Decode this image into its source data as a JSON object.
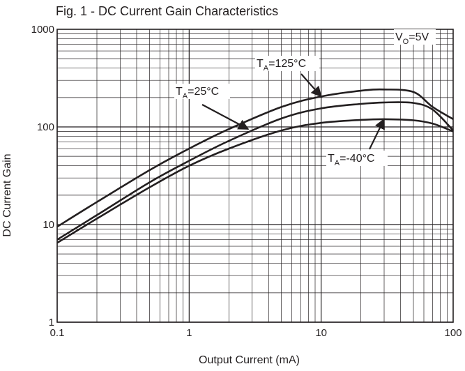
{
  "chart_data": {
    "type": "line",
    "title": "Fig. 1 - DC Current Gain Characteristics",
    "xlabel": "Output Current (mA)",
    "ylabel": "DC Current Gain",
    "x_scale": "log",
    "y_scale": "log",
    "xlim": [
      0.1,
      100
    ],
    "ylim": [
      1,
      1000
    ],
    "x_ticks": [
      "0.1",
      "1",
      "10",
      "100"
    ],
    "y_ticks": [
      "1",
      "10",
      "100",
      "1000"
    ],
    "grid": true,
    "legend": "none",
    "condition_label": "VO=5V",
    "condition_parts": {
      "main": "V",
      "sub": "O",
      "rest": "=5V"
    },
    "line_color": "#231f20",
    "series": [
      {
        "name": "TA=125°C",
        "label_parts": {
          "main": "T",
          "sub": "A",
          "rest": "=125°C"
        },
        "x": [
          0.1,
          0.2,
          0.5,
          1,
          2,
          5,
          10,
          20,
          30,
          50,
          70,
          100
        ],
        "y": [
          9.5,
          17,
          36,
          60,
          95,
          160,
          205,
          235,
          242,
          228,
          160,
          120
        ]
      },
      {
        "name": "TA=25°C",
        "label_parts": {
          "main": "T",
          "sub": "A",
          "rest": "=25°C"
        },
        "x": [
          0.1,
          0.2,
          0.5,
          1,
          2,
          5,
          10,
          20,
          30,
          50,
          70,
          100
        ],
        "y": [
          7,
          12.5,
          27,
          45,
          72,
          122,
          155,
          172,
          178,
          176,
          150,
          92
        ]
      },
      {
        "name": "TA=-40°C",
        "label_parts": {
          "main": "T",
          "sub": "A",
          "rest": "=-40°C"
        },
        "x": [
          0.1,
          0.2,
          0.5,
          1,
          2,
          5,
          10,
          20,
          30,
          50,
          70,
          100
        ],
        "y": [
          6.5,
          11.5,
          24,
          40,
          60,
          92,
          110,
          118,
          120,
          117,
          108,
          90
        ]
      }
    ]
  }
}
